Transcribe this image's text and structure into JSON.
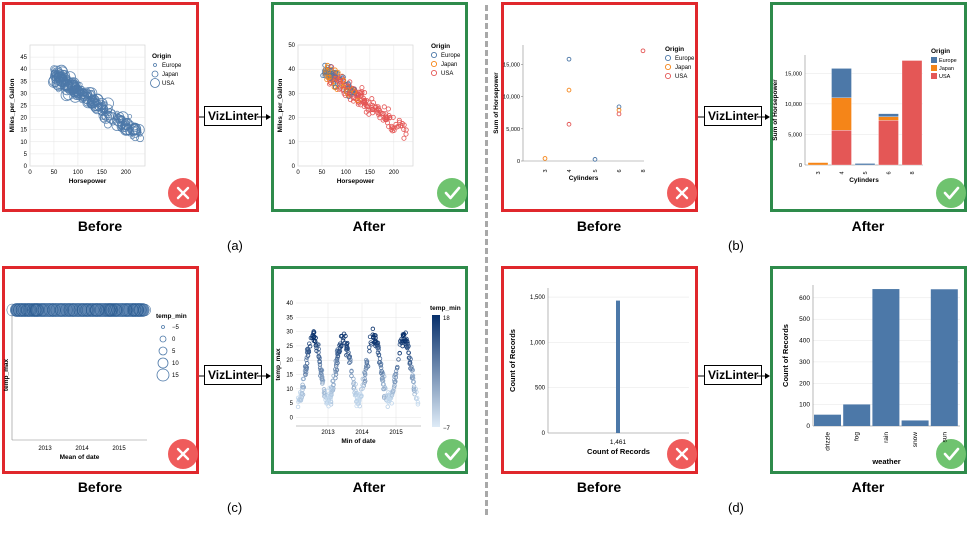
{
  "labels": {
    "before": "Before",
    "after": "After",
    "tool": "VizLinter",
    "panel_a": "(a)",
    "panel_b": "(b)",
    "panel_c": "(c)",
    "panel_d": "(d)"
  },
  "colors": {
    "before_border": "#e0272c",
    "after_border": "#2e8b4b",
    "bad_badge": "#ef5b5b",
    "good_badge": "#6fc36f",
    "europe": "#4c78a8",
    "japan": "#f58518",
    "usa": "#e45756",
    "bar": "#4c78a8"
  },
  "chart_data": [
    {
      "id": "a-before",
      "type": "scatter",
      "xlabel": "Horsepower",
      "ylabel": "Miles_per_Gallon",
      "xlim": [
        0,
        240
      ],
      "ylim": [
        0,
        50
      ],
      "xticks": [
        "0",
        "50",
        "100",
        "150",
        "200"
      ],
      "yticks": [
        "0",
        "5",
        "10",
        "15",
        "20",
        "25",
        "30",
        "35",
        "40",
        "45"
      ],
      "legend_title": "Origin",
      "legend": [
        "Europe",
        "Japan",
        "USA"
      ],
      "legend_placement": "right",
      "encoding": "size by Origin",
      "grid": true
    },
    {
      "id": "a-after",
      "type": "scatter",
      "xlabel": "Horsepower",
      "ylabel": "Miles_per_Gallon",
      "xlim": [
        0,
        240
      ],
      "ylim": [
        0,
        50
      ],
      "xticks": [
        "0",
        "50",
        "100",
        "150",
        "200"
      ],
      "yticks": [
        "0",
        "10",
        "20",
        "30",
        "40",
        "50"
      ],
      "legend_title": "Origin",
      "legend": [
        "Europe",
        "Japan",
        "USA"
      ],
      "legend_placement": "right",
      "encoding": "color by Origin",
      "grid": true
    },
    {
      "id": "b-before",
      "type": "scatter",
      "xlabel": "Cylinders",
      "ylabel": "Sum of Horsepower",
      "x_categories": [
        "3",
        "4",
        "5",
        "6",
        "8"
      ],
      "yticks": [
        "0",
        "5,000",
        "10,000",
        "15,000"
      ],
      "ylim": [
        0,
        18000
      ],
      "legend_title": "Origin",
      "legend": [
        "Europe",
        "Japan",
        "USA"
      ],
      "legend_placement": "right",
      "points": [
        {
          "x": "3",
          "origin": "Japan",
          "y": 397
        },
        {
          "x": "4",
          "origin": "Europe",
          "y": 15800
        },
        {
          "x": "4",
          "origin": "Japan",
          "y": 11000
        },
        {
          "x": "4",
          "origin": "USA",
          "y": 5700
        },
        {
          "x": "5",
          "origin": "Europe",
          "y": 250
        },
        {
          "x": "6",
          "origin": "Europe",
          "y": 8400
        },
        {
          "x": "6",
          "origin": "Japan",
          "y": 7900
        },
        {
          "x": "6",
          "origin": "USA",
          "y": 7300
        },
        {
          "x": "8",
          "origin": "USA",
          "y": 17100
        }
      ]
    },
    {
      "id": "b-after",
      "type": "bar",
      "stacked": true,
      "xlabel": "Cylinders",
      "ylabel": "Sum of Horsepower",
      "categories": [
        "3",
        "4",
        "5",
        "6",
        "8"
      ],
      "yticks": [
        "0",
        "5,000",
        "10,000",
        "15,000"
      ],
      "ylim": [
        0,
        18000
      ],
      "legend_title": "Origin",
      "legend": [
        "Europe",
        "Japan",
        "USA"
      ],
      "legend_placement": "right",
      "series": [
        {
          "name": "USA",
          "values": [
            0,
            5700,
            0,
            7300,
            17100
          ]
        },
        {
          "name": "Japan",
          "values": [
            397,
            5300,
            0,
            600,
            0
          ]
        },
        {
          "name": "Europe",
          "values": [
            0,
            4800,
            250,
            500,
            0
          ]
        }
      ]
    },
    {
      "id": "c-before",
      "type": "scatter",
      "xlabel": "Mean of date",
      "ylabel": "temp_max",
      "xticks": [
        "2013",
        "2014",
        "2015"
      ],
      "legend_title": "temp_min",
      "legend": [
        "−5",
        "0",
        "5",
        "10",
        "15"
      ],
      "legend_placement": "right",
      "encoding": "size by temp_min"
    },
    {
      "id": "c-after",
      "type": "scatter",
      "xlabel": "Min of date",
      "ylabel": "temp_max",
      "xticks": [
        "2013",
        "2014",
        "2015"
      ],
      "yticks": [
        "0",
        "5",
        "10",
        "15",
        "20",
        "25",
        "30",
        "35",
        "40"
      ],
      "ylim": [
        -3,
        40
      ],
      "legend_title": "temp_min",
      "legend": [
        "18",
        "−7"
      ],
      "legend_placement": "right",
      "encoding": "color by temp_min",
      "grid": true
    },
    {
      "id": "d-before",
      "type": "bar",
      "xlabel": "Count of Records",
      "ylabel": "Count of Records",
      "x_tick": "1,461",
      "yticks": [
        "0",
        "500",
        "1,000",
        "1,500"
      ],
      "ylim": [
        0,
        1600
      ],
      "values": [
        1461
      ]
    },
    {
      "id": "d-after",
      "type": "bar",
      "xlabel": "weather",
      "ylabel": "Count of Records",
      "categories": [
        "drizzle",
        "fog",
        "rain",
        "snow",
        "sun"
      ],
      "values": [
        53,
        101,
        641,
        26,
        640
      ],
      "yticks": [
        "0",
        "100",
        "200",
        "300",
        "400",
        "500",
        "600"
      ],
      "ylim": [
        0,
        660
      ]
    }
  ]
}
